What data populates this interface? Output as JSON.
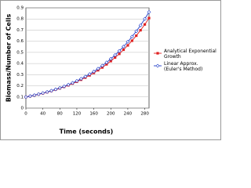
{
  "chart_data": {
    "type": "line",
    "x_label": "Time (seconds)",
    "y_label": "Biomass/Number of Cells",
    "x": [
      0,
      10,
      20,
      30,
      40,
      50,
      60,
      70,
      80,
      90,
      100,
      110,
      120,
      130,
      140,
      150,
      160,
      170,
      180,
      190,
      200,
      210,
      220,
      230,
      240,
      250,
      260,
      270,
      280,
      290
    ],
    "series": [
      {
        "name": "Analytical Exponential Growth",
        "color": "#e02020",
        "marker": "square",
        "values": [
          0.1,
          0.107,
          0.115,
          0.124,
          0.133,
          0.143,
          0.154,
          0.166,
          0.178,
          0.191,
          0.205,
          0.221,
          0.237,
          0.255,
          0.274,
          0.294,
          0.316,
          0.34,
          0.365,
          0.393,
          0.422,
          0.454,
          0.487,
          0.524,
          0.563,
          0.605,
          0.65,
          0.699,
          0.751,
          0.808
        ]
      },
      {
        "name": "Linear Approx. (Euler's Method)",
        "color": "#1e3cc8",
        "marker": "diamond",
        "values": [
          0.1,
          0.108,
          0.116,
          0.125,
          0.135,
          0.145,
          0.156,
          0.168,
          0.181,
          0.195,
          0.21,
          0.226,
          0.244,
          0.263,
          0.283,
          0.305,
          0.328,
          0.354,
          0.381,
          0.41,
          0.442,
          0.476,
          0.513,
          0.552,
          0.595,
          0.641,
          0.69,
          0.743,
          0.801,
          0.862
        ]
      }
    ],
    "xlim": [
      0,
      290
    ],
    "xticks": [
      0,
      40,
      80,
      120,
      160,
      200,
      240,
      280
    ],
    "ylim": [
      0,
      0.9
    ],
    "yticks": [
      0,
      0.1,
      0.2,
      0.3,
      0.4,
      0.5,
      0.6,
      0.7,
      0.8,
      0.9
    ],
    "grid": true,
    "legend": "right"
  }
}
